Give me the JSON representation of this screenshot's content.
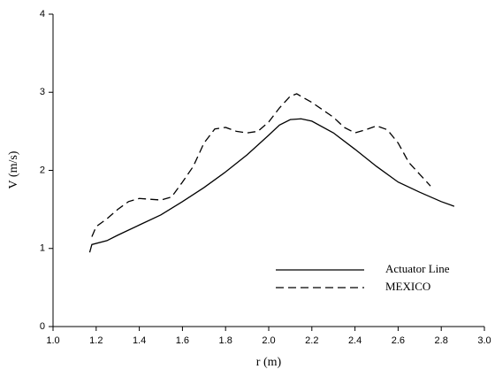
{
  "chart_data": {
    "type": "line",
    "x_label": "r (m)",
    "y_label": "V (m/s)",
    "xlim": [
      1.0,
      3.0
    ],
    "xticks": [
      {
        "value": 1.0,
        "label": "1.0"
      },
      {
        "value": 1.2,
        "label": "1.2"
      },
      {
        "value": 1.4,
        "label": "1.4"
      },
      {
        "value": 1.6,
        "label": "1.6"
      },
      {
        "value": 1.8,
        "label": "1.8"
      },
      {
        "value": 2.0,
        "label": "2.0"
      },
      {
        "value": 2.2,
        "label": "2.2"
      },
      {
        "value": 2.4,
        "label": "2.4"
      },
      {
        "value": 2.6,
        "label": "2.6"
      },
      {
        "value": 2.8,
        "label": "2.8"
      },
      {
        "value": 3.0,
        "label": "3.0"
      }
    ],
    "ylim": [
      0,
      4
    ],
    "yticks": [
      0,
      1,
      2,
      3,
      4
    ],
    "legend": "lower right",
    "series": [
      {
        "name": "Actuator Line",
        "color": "#000000",
        "dash": "solid",
        "x": [
          1.17,
          1.18,
          1.25,
          1.3,
          1.4,
          1.5,
          1.6,
          1.7,
          1.8,
          1.9,
          2.0,
          2.05,
          2.1,
          2.15,
          2.2,
          2.3,
          2.4,
          2.5,
          2.6,
          2.7,
          2.8,
          2.86
        ],
        "values": [
          0.95,
          1.05,
          1.1,
          1.17,
          1.3,
          1.43,
          1.6,
          1.78,
          1.98,
          2.2,
          2.45,
          2.58,
          2.65,
          2.66,
          2.63,
          2.48,
          2.27,
          2.05,
          1.85,
          1.72,
          1.6,
          1.54
        ]
      },
      {
        "name": "MEXICO",
        "color": "#000000",
        "dash": "dashed",
        "x": [
          1.18,
          1.2,
          1.25,
          1.3,
          1.35,
          1.4,
          1.45,
          1.5,
          1.55,
          1.6,
          1.65,
          1.7,
          1.75,
          1.8,
          1.85,
          1.9,
          1.95,
          2.0,
          2.05,
          2.1,
          2.13,
          2.2,
          2.3,
          2.35,
          2.4,
          2.45,
          2.5,
          2.55,
          2.6,
          2.65,
          2.7,
          2.75
        ],
        "values": [
          1.15,
          1.28,
          1.38,
          1.5,
          1.6,
          1.64,
          1.63,
          1.62,
          1.66,
          1.85,
          2.05,
          2.35,
          2.53,
          2.55,
          2.5,
          2.48,
          2.5,
          2.62,
          2.8,
          2.95,
          2.98,
          2.87,
          2.68,
          2.55,
          2.48,
          2.52,
          2.57,
          2.52,
          2.35,
          2.1,
          1.95,
          1.8
        ]
      }
    ]
  }
}
